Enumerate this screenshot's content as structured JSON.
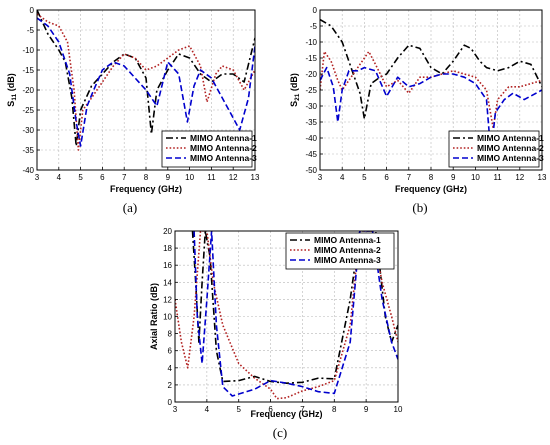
{
  "chart_data": [
    {
      "type": "line",
      "panel_label": "(a)",
      "xlabel": "Frequency (GHz)",
      "ylabel": "S11 (dB)",
      "ylabel_main": "S",
      "ylabel_sub": "11",
      "ylabel_unit": " (dB)",
      "xlim": [
        3,
        13
      ],
      "ylim": [
        -40,
        0
      ],
      "xticks": [
        3,
        4,
        5,
        6,
        7,
        8,
        9,
        10,
        11,
        12,
        13
      ],
      "yticks": [
        0,
        -5,
        -10,
        -15,
        -20,
        -25,
        -30,
        -35,
        -40
      ],
      "grid": true,
      "legend": "bottom-right",
      "series": [
        {
          "name": "MIMO Antenna-1",
          "color": "#000000",
          "dash": "dashdot",
          "points": [
            [
              3,
              0
            ],
            [
              3.5,
              -6
            ],
            [
              4,
              -10
            ],
            [
              4.3,
              -13
            ],
            [
              4.6,
              -22
            ],
            [
              4.8,
              -34
            ],
            [
              5.0,
              -25
            ],
            [
              5.5,
              -19
            ],
            [
              6,
              -16
            ],
            [
              6.5,
              -13
            ],
            [
              7,
              -11
            ],
            [
              7.5,
              -12
            ],
            [
              8,
              -17
            ],
            [
              8.25,
              -31
            ],
            [
              8.5,
              -20
            ],
            [
              9,
              -15
            ],
            [
              9.5,
              -11
            ],
            [
              10,
              -12
            ],
            [
              10.5,
              -16
            ],
            [
              11,
              -18
            ],
            [
              11.5,
              -16
            ],
            [
              12,
              -16
            ],
            [
              12.5,
              -18
            ],
            [
              13,
              -7
            ]
          ]
        },
        {
          "name": "MIMO Antenna-2",
          "color": "#b22222",
          "dash": "dotted",
          "points": [
            [
              3,
              -1
            ],
            [
              3.5,
              -3
            ],
            [
              4,
              -4
            ],
            [
              4.4,
              -8
            ],
            [
              4.7,
              -20
            ],
            [
              4.9,
              -35
            ],
            [
              5.1,
              -25
            ],
            [
              5.5,
              -22
            ],
            [
              6,
              -18
            ],
            [
              6.5,
              -14
            ],
            [
              7,
              -11
            ],
            [
              7.5,
              -12
            ],
            [
              8,
              -15
            ],
            [
              8.5,
              -14
            ],
            [
              9,
              -12
            ],
            [
              9.5,
              -10
            ],
            [
              10,
              -9
            ],
            [
              10.5,
              -14
            ],
            [
              10.8,
              -23
            ],
            [
              11.2,
              -16
            ],
            [
              11.5,
              -14
            ],
            [
              12,
              -15
            ],
            [
              12.5,
              -20
            ],
            [
              13,
              -15
            ]
          ]
        },
        {
          "name": "MIMO Antenna-3",
          "color": "#0000cd",
          "dash": "dashed",
          "points": [
            [
              3,
              -2
            ],
            [
              3.5,
              -4
            ],
            [
              4,
              -8
            ],
            [
              4.5,
              -16
            ],
            [
              4.8,
              -28
            ],
            [
              5.0,
              -34
            ],
            [
              5.3,
              -24
            ],
            [
              5.6,
              -20
            ],
            [
              6,
              -15
            ],
            [
              6.5,
              -13
            ],
            [
              7,
              -14
            ],
            [
              7.5,
              -17
            ],
            [
              8,
              -20
            ],
            [
              8.5,
              -24
            ],
            [
              9,
              -13
            ],
            [
              9.5,
              -16
            ],
            [
              9.9,
              -28
            ],
            [
              10.2,
              -19
            ],
            [
              10.5,
              -15
            ],
            [
              11,
              -17
            ],
            [
              11.5,
              -22
            ],
            [
              12,
              -27
            ],
            [
              12.3,
              -30
            ],
            [
              12.7,
              -22
            ],
            [
              13,
              -9
            ]
          ]
        }
      ]
    },
    {
      "type": "line",
      "panel_label": "(b)",
      "xlabel": "Frequency (GHz)",
      "ylabel": "S21 (dB)",
      "ylabel_main": "S",
      "ylabel_sub": "21",
      "ylabel_unit": " (dB)",
      "xlim": [
        3,
        13
      ],
      "ylim": [
        -50,
        0
      ],
      "xticks": [
        3,
        4,
        5,
        6,
        7,
        8,
        9,
        10,
        11,
        12,
        13
      ],
      "yticks": [
        0,
        -5,
        -10,
        -15,
        -20,
        -25,
        -30,
        -35,
        -40,
        -45,
        -50
      ],
      "grid": true,
      "legend": "bottom-right",
      "series": [
        {
          "name": "MIMO Antenna-1",
          "color": "#000000",
          "dash": "dashdot",
          "points": [
            [
              3,
              -3
            ],
            [
              3.5,
              -5
            ],
            [
              4,
              -10
            ],
            [
              4.5,
              -20
            ],
            [
              4.8,
              -26
            ],
            [
              5.0,
              -34
            ],
            [
              5.3,
              -23
            ],
            [
              5.7,
              -21
            ],
            [
              6,
              -20
            ],
            [
              6.5,
              -15
            ],
            [
              7,
              -11
            ],
            [
              7.5,
              -12
            ],
            [
              8,
              -18
            ],
            [
              8.5,
              -20
            ],
            [
              9,
              -16
            ],
            [
              9.5,
              -11
            ],
            [
              9.8,
              -12
            ],
            [
              10.2,
              -16
            ],
            [
              10.5,
              -18
            ],
            [
              11,
              -19
            ],
            [
              11.5,
              -18
            ],
            [
              12,
              -16
            ],
            [
              12.5,
              -17
            ],
            [
              13,
              -24
            ]
          ]
        },
        {
          "name": "MIMO Antenna-2",
          "color": "#b22222",
          "dash": "dotted",
          "points": [
            [
              3,
              -25
            ],
            [
              3.2,
              -13
            ],
            [
              3.5,
              -16
            ],
            [
              3.8,
              -22
            ],
            [
              4,
              -25
            ],
            [
              4.5,
              -20
            ],
            [
              5,
              -15
            ],
            [
              5.2,
              -13
            ],
            [
              5.5,
              -17
            ],
            [
              6,
              -24
            ],
            [
              6.5,
              -22
            ],
            [
              7,
              -26
            ],
            [
              7.5,
              -21
            ],
            [
              8,
              -21
            ],
            [
              8.5,
              -20
            ],
            [
              9,
              -19
            ],
            [
              9.5,
              -20
            ],
            [
              10,
              -21
            ],
            [
              10.5,
              -25
            ],
            [
              10.8,
              -37
            ],
            [
              11,
              -28
            ],
            [
              11.5,
              -24
            ],
            [
              12,
              -24
            ],
            [
              12.5,
              -23
            ],
            [
              13,
              -22
            ]
          ]
        },
        {
          "name": "MIMO Antenna-3",
          "color": "#0000cd",
          "dash": "dashed",
          "points": [
            [
              3,
              -22
            ],
            [
              3.3,
              -18
            ],
            [
              3.6,
              -24
            ],
            [
              3.8,
              -35
            ],
            [
              4,
              -25
            ],
            [
              4.3,
              -19
            ],
            [
              4.7,
              -19
            ],
            [
              5,
              -18
            ],
            [
              5.5,
              -19
            ],
            [
              6,
              -27
            ],
            [
              6.5,
              -21
            ],
            [
              7,
              -24
            ],
            [
              7.5,
              -23
            ],
            [
              8,
              -21
            ],
            [
              8.5,
              -20
            ],
            [
              9,
              -20
            ],
            [
              9.5,
              -21
            ],
            [
              10,
              -23
            ],
            [
              10.5,
              -28
            ],
            [
              10.7,
              -45
            ],
            [
              10.9,
              -32
            ],
            [
              11.3,
              -28
            ],
            [
              11.7,
              -26
            ],
            [
              12.2,
              -28
            ],
            [
              13,
              -25
            ]
          ]
        }
      ]
    },
    {
      "type": "line",
      "panel_label": "(c)",
      "xlabel": "Frequency (GHz)",
      "ylabel": "Axial Ratio (dB)",
      "xlim": [
        3,
        10
      ],
      "ylim": [
        0,
        20
      ],
      "xticks": [
        3,
        4,
        5,
        6,
        7,
        8,
        9,
        10
      ],
      "yticks": [
        0,
        2,
        4,
        6,
        8,
        10,
        12,
        14,
        16,
        18,
        20
      ],
      "grid": true,
      "legend": "top-left",
      "series": [
        {
          "name": "MIMO Antenna-1",
          "color": "#000000",
          "dash": "dashdot",
          "points": [
            [
              3.55,
              20
            ],
            [
              3.65,
              14
            ],
            [
              3.75,
              7
            ],
            [
              3.85,
              14
            ],
            [
              3.95,
              20
            ],
            [
              4.1,
              17
            ],
            [
              4.3,
              6
            ],
            [
              4.5,
              2.4
            ],
            [
              5,
              2.5
            ],
            [
              5.5,
              3.0
            ],
            [
              6,
              2.4
            ],
            [
              6.5,
              2.2
            ],
            [
              7,
              2.3
            ],
            [
              7.5,
              2.8
            ],
            [
              8,
              2.7
            ],
            [
              8.5,
              12
            ],
            [
              8.8,
              20
            ],
            [
              9.3,
              20
            ],
            [
              9.6,
              10
            ],
            [
              9.8,
              7
            ],
            [
              10,
              9
            ]
          ]
        },
        {
          "name": "MIMO Antenna-2",
          "color": "#b22222",
          "dash": "dotted",
          "points": [
            [
              3,
              12
            ],
            [
              3.2,
              7
            ],
            [
              3.4,
              4
            ],
            [
              3.6,
              10
            ],
            [
              3.8,
              20
            ],
            [
              4.0,
              20
            ],
            [
              4.2,
              14
            ],
            [
              4.5,
              9
            ],
            [
              5,
              4.5
            ],
            [
              5.5,
              2.8
            ],
            [
              6,
              1.5
            ],
            [
              6.2,
              0.4
            ],
            [
              6.5,
              0.5
            ],
            [
              7,
              1.3
            ],
            [
              7.5,
              1.8
            ],
            [
              8,
              2.5
            ],
            [
              8.5,
              9
            ],
            [
              8.8,
              20
            ],
            [
              9.2,
              20
            ],
            [
              9.5,
              14
            ],
            [
              9.8,
              10
            ],
            [
              10,
              7
            ]
          ]
        },
        {
          "name": "MIMO Antenna-3",
          "color": "#0000cd",
          "dash": "dashed",
          "points": [
            [
              3.6,
              20
            ],
            [
              3.7,
              10
            ],
            [
              3.85,
              4.5
            ],
            [
              4.0,
              12
            ],
            [
              4.15,
              20
            ],
            [
              4.3,
              9
            ],
            [
              4.5,
              1.8
            ],
            [
              4.8,
              0.7
            ],
            [
              5.5,
              1.5
            ],
            [
              6,
              2.5
            ],
            [
              6.5,
              2.2
            ],
            [
              7,
              1.8
            ],
            [
              7.5,
              1.2
            ],
            [
              8,
              1.0
            ],
            [
              8.5,
              7
            ],
            [
              8.8,
              20
            ],
            [
              9.2,
              20
            ],
            [
              9.5,
              12
            ],
            [
              9.8,
              7
            ],
            [
              10,
              5
            ]
          ]
        }
      ]
    }
  ]
}
